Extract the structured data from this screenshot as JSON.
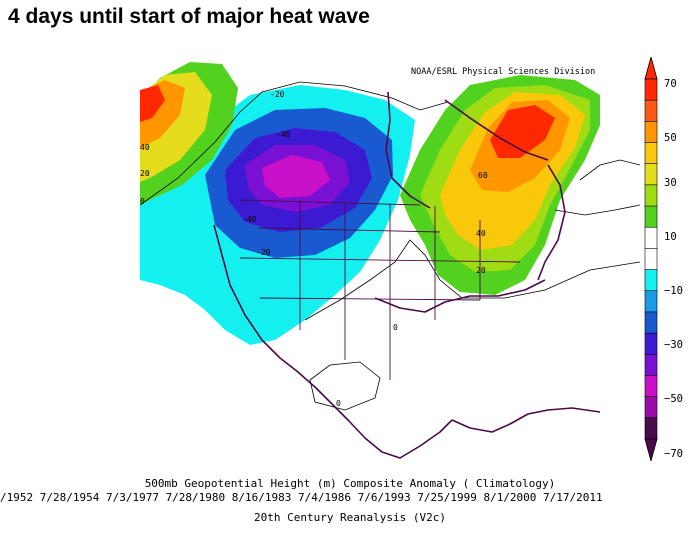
{
  "title": "4 days until start of major heat wave",
  "credit": "NOAA/ESRL Physical Sciences Division",
  "caption": {
    "line1": "500mb Geopotential Height (m) Composite Anomaly ( Climatology)",
    "line2": "/1952 7/28/1954 7/3/1977 7/28/1980 8/16/1983 7/4/1986 7/6/1993 7/25/1999 8/1/2000 7/17/2011",
    "line3": "20th Century Reanalysis (V2c)"
  },
  "colorbar": {
    "labels": [
      "70",
      "50",
      "30",
      "10",
      "−10",
      "−30",
      "−50",
      "−70"
    ],
    "colors": [
      "#4a0a4a",
      "#9a0aa8",
      "#c810c8",
      "#7a10d2",
      "#3c1ad2",
      "#1a5ad0",
      "#1a9be8",
      "#14f0f0",
      "#ffffff",
      "#ffffff",
      "#52d21e",
      "#a0dc14",
      "#e6dc1e",
      "#fac80a",
      "#ff9600",
      "#ff5a14",
      "#ff2800"
    ]
  },
  "contour_labels": {
    "a": "-20",
    "b": "-40",
    "c": "-40",
    "d": "-20",
    "e": "60",
    "f": "40",
    "g": "20",
    "h": "0",
    "i": "0",
    "j": "0",
    "k": "20",
    "l": "40"
  }
}
